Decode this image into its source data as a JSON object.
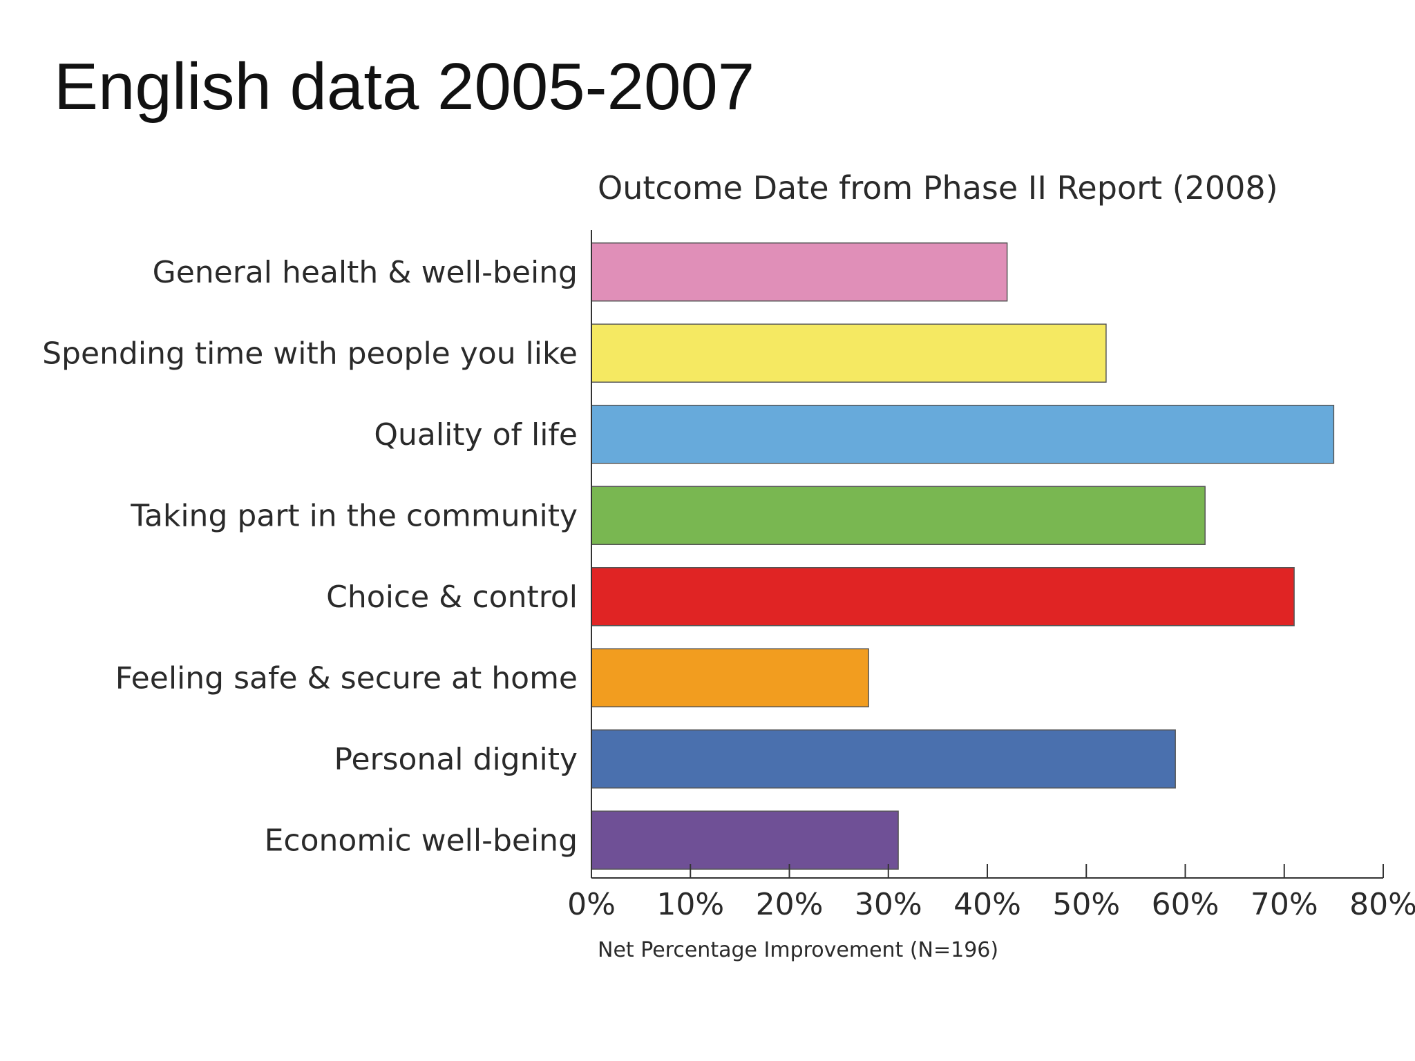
{
  "slide": {
    "title": "English data 2005-2007"
  },
  "chart_data": {
    "type": "bar",
    "orientation": "horizontal",
    "title": "Outcome Date from Phase II Report (2008)",
    "xlabel": "Net Percentage Improvement (N=196)",
    "ylabel": "",
    "xlim": [
      0,
      80
    ],
    "x_ticks": [
      "0%",
      "10%",
      "20%",
      "30%",
      "40%",
      "50%",
      "60%",
      "70%",
      "80%"
    ],
    "x_tick_values": [
      0,
      10,
      20,
      30,
      40,
      50,
      60,
      70,
      80
    ],
    "unit": "%",
    "grid": false,
    "legend": "none",
    "categories": [
      "General health & well-being",
      "Spending time with people you like",
      "Quality of life",
      "Taking part in the community",
      "Choice & control",
      "Feeling safe & secure at home",
      "Personal dignity",
      "Economic well-being"
    ],
    "values": [
      42,
      52,
      75,
      62,
      71,
      28,
      59,
      31
    ],
    "colors": [
      "#e08fb8",
      "#f5e962",
      "#67aadb",
      "#79b751",
      "#e02424",
      "#f29d1f",
      "#4a70ae",
      "#6f5096"
    ]
  }
}
